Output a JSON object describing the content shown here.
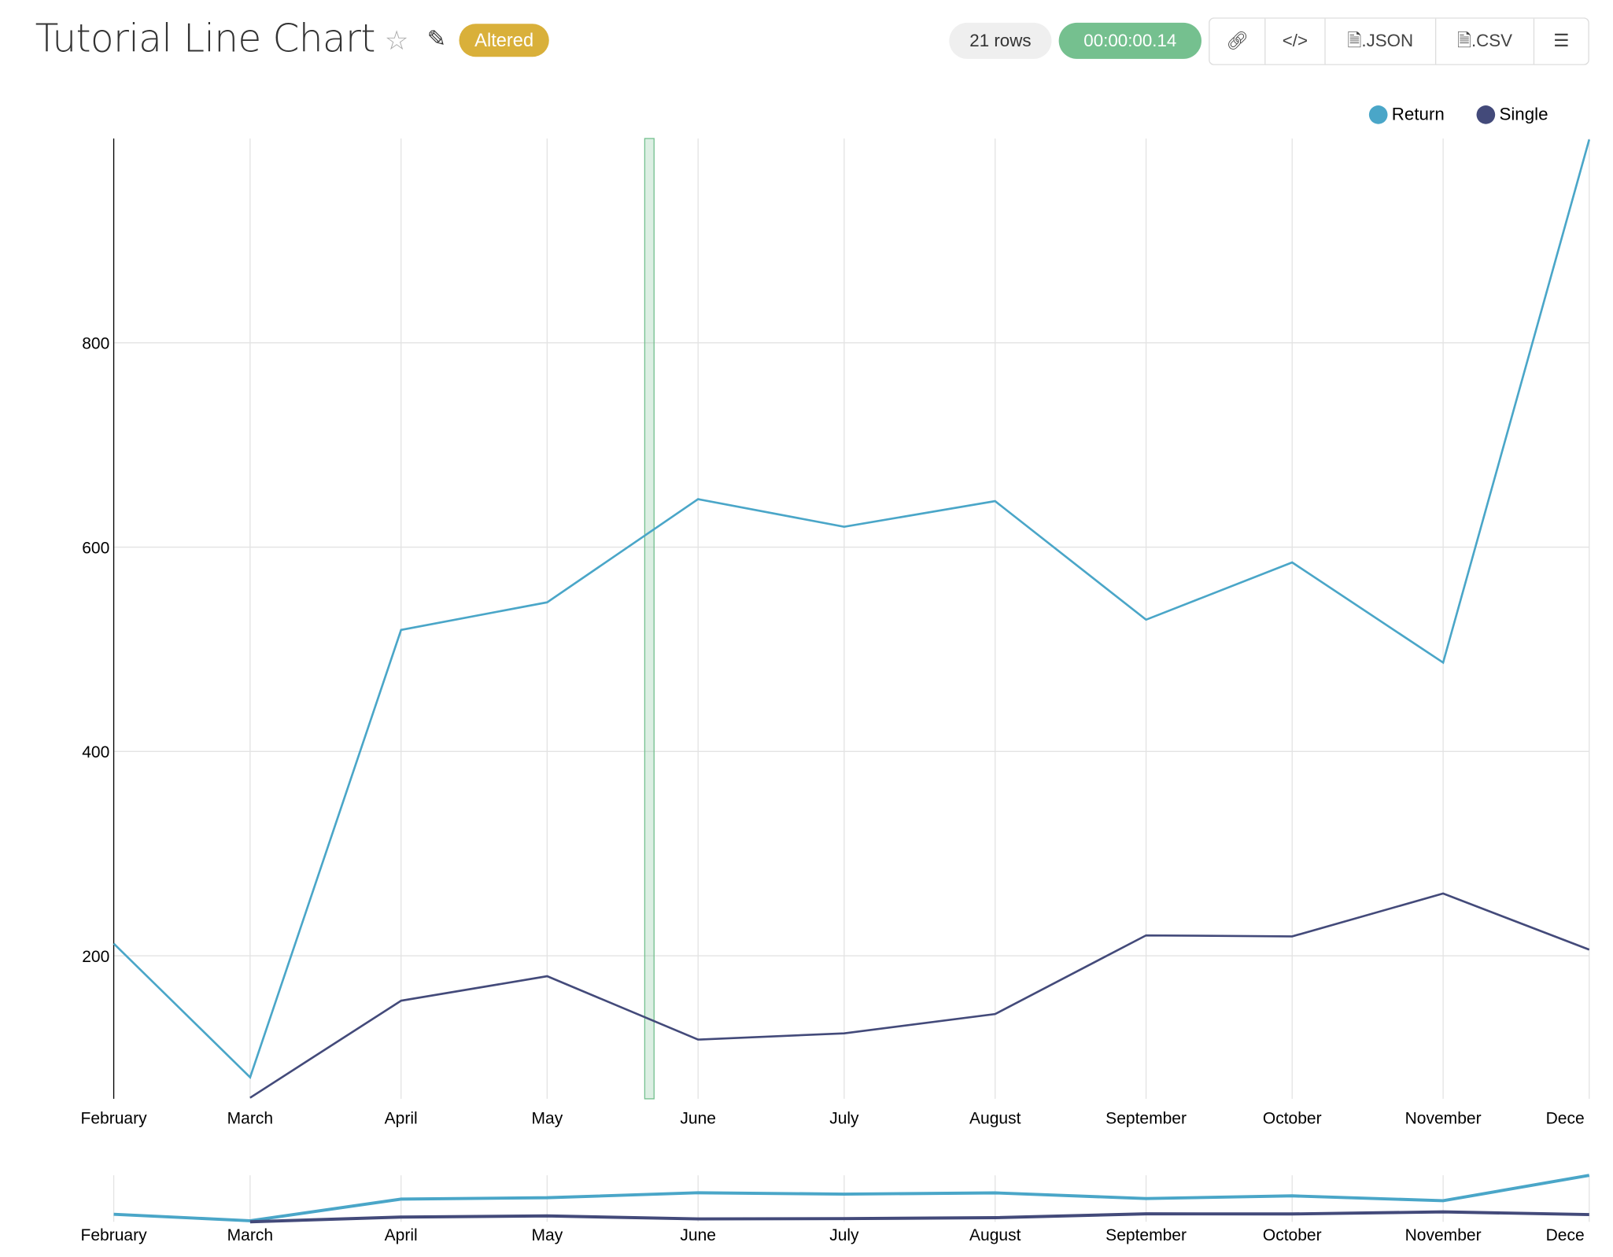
{
  "header": {
    "title": "Tutorial Line Chart",
    "favorite_icon": "star-icon",
    "edit_icon": "edit-icon",
    "badge": "Altered",
    "rows": "21 rows",
    "elapsed": "00:00:00.14",
    "actions": [
      {
        "name": "share-link-button",
        "icon": "link-icon",
        "label": ""
      },
      {
        "name": "embed-code-button",
        "icon": "code-icon",
        "label": ""
      },
      {
        "name": "export-json-button",
        "icon": "file-code-icon",
        "label": ".JSON"
      },
      {
        "name": "export-csv-button",
        "icon": "file-text-icon",
        "label": ".CSV"
      },
      {
        "name": "menu-button",
        "icon": "menu-icon",
        "label": ""
      }
    ]
  },
  "colors": {
    "return": "#4aa6c8",
    "single": "#434a7a",
    "badge": "#d9b03a",
    "elapsed": "#75c08f",
    "highlight": "#75c08f"
  },
  "chart_data": {
    "type": "line",
    "title": "",
    "xlabel": "",
    "ylabel": "",
    "x": [
      "2019-02-01",
      "2019-03-01",
      "2019-04-01",
      "2019-05-01",
      "2019-06-01",
      "2019-07-01",
      "2019-08-01",
      "2019-09-01",
      "2019-10-01",
      "2019-11-01",
      "2019-12-01"
    ],
    "x_tick_labels": [
      "February",
      "March",
      "April",
      "May",
      "June",
      "July",
      "August",
      "September",
      "October",
      "November",
      "Dece"
    ],
    "y_ticks": [
      200,
      400,
      600,
      800
    ],
    "ylim": [
      60,
      1000
    ],
    "grid": true,
    "legend": "top-right",
    "series": [
      {
        "name": "Return",
        "values": [
          212,
          81,
          519,
          546,
          647,
          620,
          645,
          529,
          585,
          487,
          999
        ]
      },
      {
        "name": "Single",
        "values": [
          null,
          61,
          156,
          180,
          118,
          124,
          143,
          220,
          219,
          261,
          206
        ]
      }
    ],
    "highlight_date": "2019-05-22",
    "overview_brush": true
  }
}
